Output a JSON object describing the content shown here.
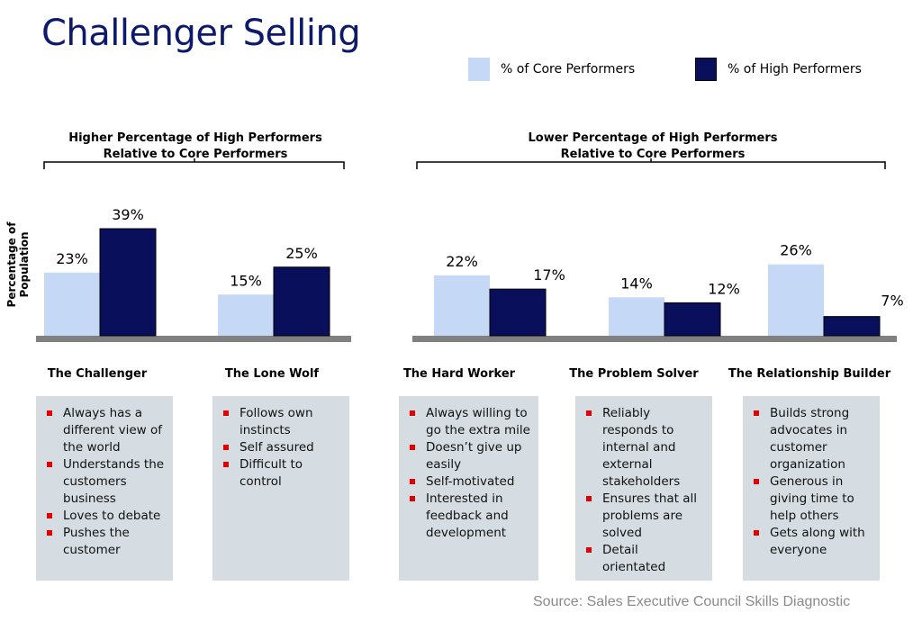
{
  "title": "Challenger Selling",
  "legend": [
    {
      "label": "% of Core Performers",
      "color": "#c5d9f7"
    },
    {
      "label": "% of High Performers",
      "color": "#0a0f5c"
    }
  ],
  "group_labels": {
    "left_line1": "Higher Percentage of High Performers",
    "left_line2": "Relative to Core Performers",
    "right_line1": "Lower Percentage of High Performers",
    "right_line2": "Relative to Core Performers"
  },
  "source": "Source: Sales Executive Council Skills Diagnostic",
  "chart_data": {
    "type": "bar",
    "ylabel": "Percentage of Population",
    "categories": [
      "The Challenger",
      "The Lone Wolf",
      "The Hard Worker",
      "The Problem Solver",
      "The Relationship Builder"
    ],
    "series": [
      {
        "name": "% of Core Performers",
        "values": [
          23,
          15,
          22,
          14,
          26
        ],
        "color": "#c5d9f7"
      },
      {
        "name": "% of High Performers",
        "values": [
          39,
          25,
          17,
          12,
          7
        ],
        "color": "#0a0f5c"
      }
    ],
    "data_labels": [
      [
        "23%",
        "15%",
        "22%",
        "14%",
        "26%"
      ],
      [
        "39%",
        "25%",
        "17%",
        "12%",
        "7%"
      ]
    ],
    "ylim": [
      0,
      45
    ],
    "grid": false,
    "legend_position": "top-right"
  },
  "cards": [
    {
      "items": [
        "Always has a different view of the world",
        "Understands the customers business",
        "Loves to debate",
        "Pushes the customer"
      ]
    },
    {
      "items": [
        "Follows own instincts",
        "Self assured",
        "Difficult to control"
      ]
    },
    {
      "items": [
        "Always willing to go the extra mile",
        "Doesn’t give up easily",
        "Self-motivated",
        "Interested in feedback and development"
      ]
    },
    {
      "items": [
        "Reliably responds to internal and external stakeholders",
        "Ensures that all problems are solved",
        "Detail orientated"
      ]
    },
    {
      "items": [
        "Builds strong advocates in customer organization",
        "Generous in giving time to help others",
        "Gets along with everyone"
      ]
    }
  ]
}
